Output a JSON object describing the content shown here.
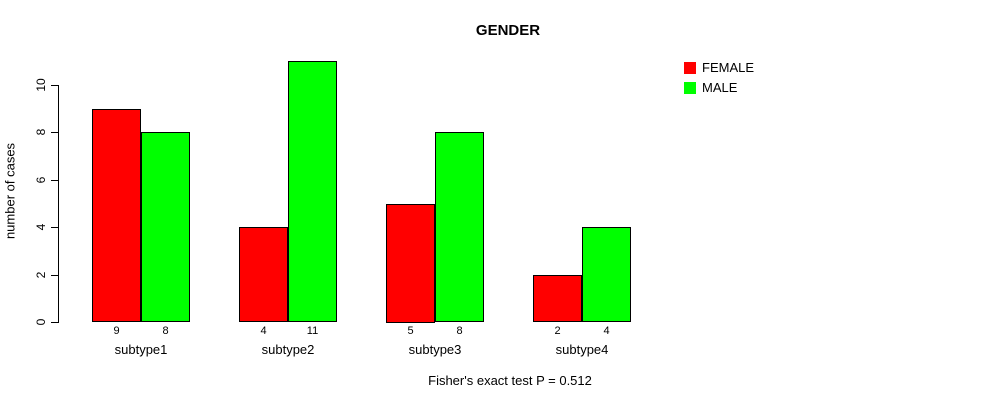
{
  "chart_data": {
    "type": "bar",
    "title": "GENDER",
    "ylabel": "number of cases",
    "xlabel": "",
    "categories": [
      "subtype1",
      "subtype2",
      "subtype3",
      "subtype4"
    ],
    "series": [
      {
        "name": "FEMALE",
        "color": "#ff0000",
        "values": [
          9,
          4,
          5,
          2
        ]
      },
      {
        "name": "MALE",
        "color": "#00ff00",
        "values": [
          8,
          11,
          8,
          4
        ]
      }
    ],
    "yticks": [
      0,
      2,
      4,
      6,
      8,
      10
    ],
    "ylim": [
      0,
      10
    ],
    "bar_value_labels_shown": true,
    "grid": false,
    "legend_position": "top-right",
    "bar_border_color": "#000000",
    "caption": "Fisher's exact test P = 0.512"
  }
}
